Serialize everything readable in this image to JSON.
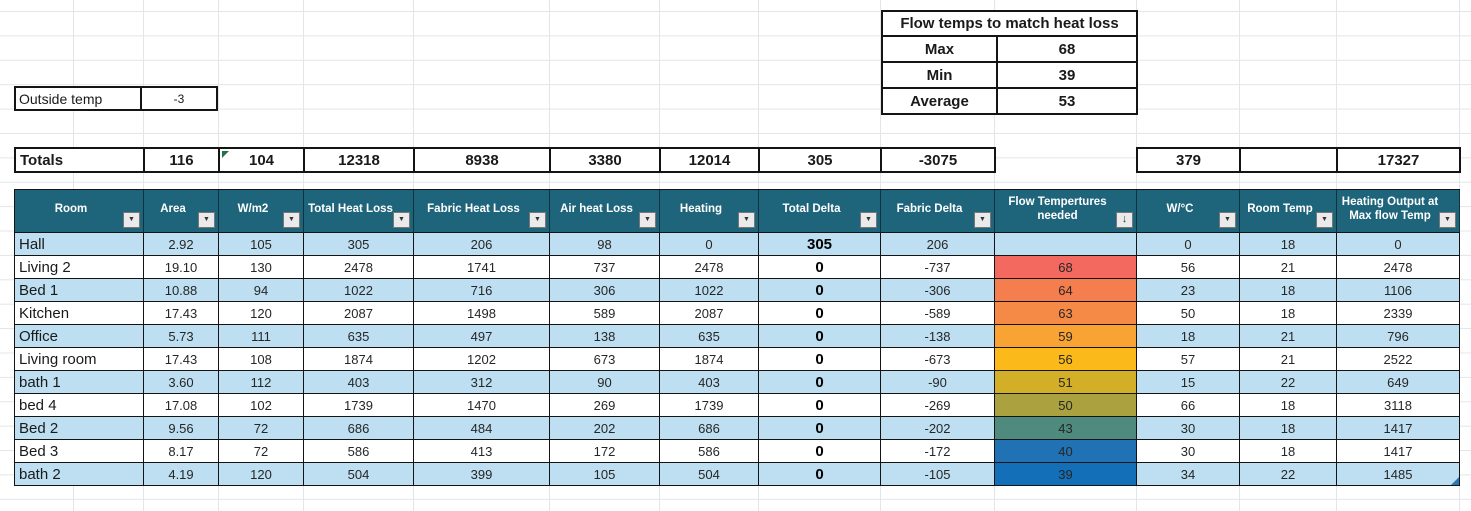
{
  "outside_temp": {
    "label": "Outside temp",
    "value": "-3"
  },
  "flow_box": {
    "title": "Flow temps to match heat loss",
    "rows": [
      {
        "label": "Max",
        "value": "68"
      },
      {
        "label": "Min",
        "value": "39"
      },
      {
        "label": "Average",
        "value": "53"
      }
    ]
  },
  "totals": {
    "label": "Totals",
    "values": {
      "area": "116",
      "wm2": "104",
      "total_heat_loss": "12318",
      "fabric_heat_loss": "8938",
      "air_heat_loss": "3380",
      "heating": "12014",
      "total_delta": "305",
      "fabric_delta": "-3075",
      "wc": "379",
      "room_temp": "",
      "heating_output": "17327"
    }
  },
  "icons": {
    "filter": "▼",
    "sorted_filter": "↓"
  },
  "colors": {
    "header_bg": "#1E657C",
    "band_blue": "#BDDFF1",
    "error_indicator": "#217346",
    "resize_handle": "#2E75B6"
  },
  "table": {
    "headers": [
      "Room",
      "Area",
      "W/m2",
      "Total Heat Loss",
      "Fabric Heat Loss",
      "Air heat Loss",
      "Heating",
      "Total Delta",
      "Fabric Delta",
      "Flow Tempertures needed",
      "W/°C",
      "Room Temp",
      "Heating Output at Max flow Temp"
    ],
    "sorted_column": "Flow Tempertures needed",
    "rows": [
      {
        "room": "Hall",
        "area": "2.92",
        "wm2": "105",
        "total_heat_loss": "305",
        "fabric_heat_loss": "206",
        "air_heat_loss": "98",
        "heating": "0",
        "total_delta": "305",
        "fabric_delta": "206",
        "flow_temp": "",
        "flow_color": "",
        "wc": "0",
        "room_temp": "18",
        "heating_output": "0"
      },
      {
        "room": "Living 2",
        "area": "19.10",
        "wm2": "130",
        "total_heat_loss": "2478",
        "fabric_heat_loss": "1741",
        "air_heat_loss": "737",
        "heating": "2478",
        "total_delta": "0",
        "fabric_delta": "-737",
        "flow_temp": "68",
        "flow_color": "#F4695F",
        "wc": "56",
        "room_temp": "21",
        "heating_output": "2478"
      },
      {
        "room": "Bed 1",
        "area": "10.88",
        "wm2": "94",
        "total_heat_loss": "1022",
        "fabric_heat_loss": "716",
        "air_heat_loss": "306",
        "heating": "1022",
        "total_delta": "0",
        "fabric_delta": "-306",
        "flow_temp": "64",
        "flow_color": "#F57E4E",
        "wc": "23",
        "room_temp": "18",
        "heating_output": "1106"
      },
      {
        "room": "Kitchen",
        "area": "17.43",
        "wm2": "120",
        "total_heat_loss": "2087",
        "fabric_heat_loss": "1498",
        "air_heat_loss": "589",
        "heating": "2087",
        "total_delta": "0",
        "fabric_delta": "-589",
        "flow_temp": "63",
        "flow_color": "#F58A46",
        "wc": "50",
        "room_temp": "18",
        "heating_output": "2339"
      },
      {
        "room": "Office",
        "area": "5.73",
        "wm2": "111",
        "total_heat_loss": "635",
        "fabric_heat_loss": "497",
        "air_heat_loss": "138",
        "heating": "635",
        "total_delta": "0",
        "fabric_delta": "-138",
        "flow_temp": "59",
        "flow_color": "#F9A334",
        "wc": "18",
        "room_temp": "21",
        "heating_output": "796"
      },
      {
        "room": "Living room",
        "area": "17.43",
        "wm2": "108",
        "total_heat_loss": "1874",
        "fabric_heat_loss": "1202",
        "air_heat_loss": "673",
        "heating": "1874",
        "total_delta": "0",
        "fabric_delta": "-673",
        "flow_temp": "56",
        "flow_color": "#FBBA19",
        "wc": "57",
        "room_temp": "21",
        "heating_output": "2522"
      },
      {
        "room": "bath 1",
        "area": "3.60",
        "wm2": "112",
        "total_heat_loss": "403",
        "fabric_heat_loss": "312",
        "air_heat_loss": "90",
        "heating": "403",
        "total_delta": "0",
        "fabric_delta": "-90",
        "flow_temp": "51",
        "flow_color": "#D3AF27",
        "wc": "15",
        "room_temp": "22",
        "heating_output": "649"
      },
      {
        "room": "bed 4",
        "area": "17.08",
        "wm2": "102",
        "total_heat_loss": "1739",
        "fabric_heat_loss": "1470",
        "air_heat_loss": "269",
        "heating": "1739",
        "total_delta": "0",
        "fabric_delta": "-269",
        "flow_temp": "50",
        "flow_color": "#ABA23F",
        "wc": "66",
        "room_temp": "18",
        "heating_output": "3118"
      },
      {
        "room": "Bed 2",
        "area": "9.56",
        "wm2": "72",
        "total_heat_loss": "686",
        "fabric_heat_loss": "484",
        "air_heat_loss": "202",
        "heating": "686",
        "total_delta": "0",
        "fabric_delta": "-202",
        "flow_temp": "43",
        "flow_color": "#4F8A7E",
        "wc": "30",
        "room_temp": "18",
        "heating_output": "1417"
      },
      {
        "room": "Bed 3",
        "area": "8.17",
        "wm2": "72",
        "total_heat_loss": "586",
        "fabric_heat_loss": "413",
        "air_heat_loss": "172",
        "heating": "586",
        "total_delta": "0",
        "fabric_delta": "-172",
        "flow_temp": "40",
        "flow_color": "#2072B5",
        "wc": "30",
        "room_temp": "18",
        "heating_output": "1417"
      },
      {
        "room": "bath 2",
        "area": "4.19",
        "wm2": "120",
        "total_heat_loss": "504",
        "fabric_heat_loss": "399",
        "air_heat_loss": "105",
        "heating": "504",
        "total_delta": "0",
        "fabric_delta": "-105",
        "flow_temp": "39",
        "flow_color": "#1370B8",
        "wc": "34",
        "room_temp": "22",
        "heating_output": "1485"
      }
    ]
  }
}
